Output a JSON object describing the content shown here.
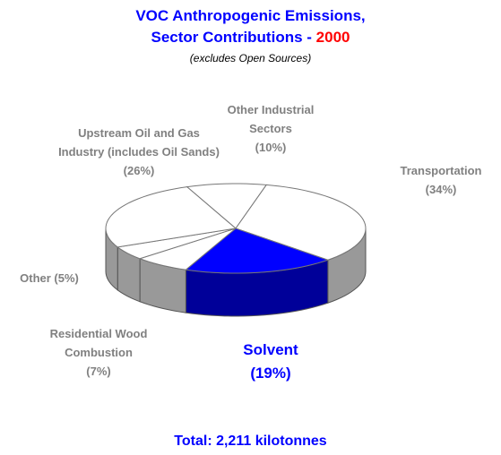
{
  "chart_data": {
    "type": "pie3d",
    "title": [
      "VOC Anthropogenic Emissions,",
      "Sector Contributions -"
    ],
    "title_highlight": "2000",
    "subtitle": "(excludes Open Sources)",
    "categories": [
      "Other Industrial Sectors",
      "Transportation",
      "Solvent",
      "Residential Wood Combustion",
      "Other",
      "Upstream Oil and Gas Industry (includes Oil Sands)"
    ],
    "values": [
      10,
      34,
      19,
      7,
      5,
      26
    ],
    "value_labels": [
      "(10%)",
      "(34%)",
      "(19%)",
      "(7%)",
      "(5%)",
      "(26%)"
    ],
    "colors": [
      "#ffffff",
      "#ffffff",
      "#0000ff",
      "#ffffff",
      "#ffffff",
      "#ffffff"
    ],
    "side_colors": [
      "#999999",
      "#999999",
      "#000099",
      "#999999",
      "#999999",
      "#999999"
    ],
    "total": "Total:  2,211 kilotonnes"
  }
}
